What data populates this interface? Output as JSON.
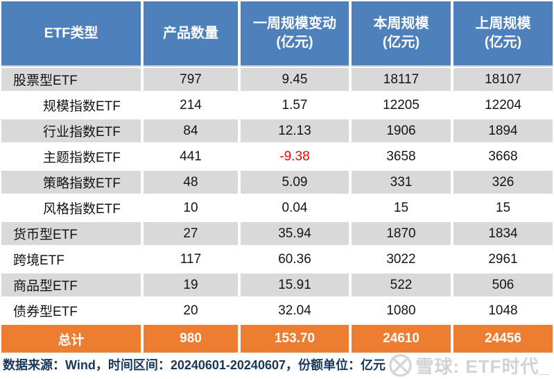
{
  "colors": {
    "header_bg": "#4E80BC",
    "row_alt_bg": "#D9D9D9",
    "total_bg": "#ED7D31",
    "negative": "#FF0000",
    "footer_text": "#17375E",
    "watermark": "#D2D2D2"
  },
  "table": {
    "header": {
      "col1": "ETF类型",
      "col2": "产品数量",
      "col3_line1": "一周规模变动",
      "col3_line2": "(亿元)",
      "col4_line1": "本周规模",
      "col4_line2": "(亿元)",
      "col5_line1": "上周规模",
      "col5_line2": "(亿元)"
    },
    "rows": [
      {
        "label": "股票型ETF",
        "indent": false,
        "count": "797",
        "change": "9.45",
        "this_week": "18117",
        "last_week": "18107",
        "negative": false
      },
      {
        "label": "规模指数ETF",
        "indent": true,
        "count": "214",
        "change": "1.57",
        "this_week": "12205",
        "last_week": "12204",
        "negative": false
      },
      {
        "label": "行业指数ETF",
        "indent": true,
        "count": "84",
        "change": "12.13",
        "this_week": "1906",
        "last_week": "1894",
        "negative": false
      },
      {
        "label": "主题指数ETF",
        "indent": true,
        "count": "441",
        "change": "-9.38",
        "this_week": "3658",
        "last_week": "3668",
        "negative": true
      },
      {
        "label": "策略指数ETF",
        "indent": true,
        "count": "48",
        "change": "5.09",
        "this_week": "331",
        "last_week": "326",
        "negative": false
      },
      {
        "label": "风格指数ETF",
        "indent": true,
        "count": "10",
        "change": "0.04",
        "this_week": "15",
        "last_week": "15",
        "negative": false
      },
      {
        "label": "货币型ETF",
        "indent": false,
        "count": "27",
        "change": "35.94",
        "this_week": "1870",
        "last_week": "1834",
        "negative": false
      },
      {
        "label": "跨境ETF",
        "indent": false,
        "count": "117",
        "change": "60.36",
        "this_week": "3022",
        "last_week": "2961",
        "negative": false
      },
      {
        "label": "商品型ETF",
        "indent": false,
        "count": "19",
        "change": "15.91",
        "this_week": "522",
        "last_week": "506",
        "negative": false
      },
      {
        "label": "债券型ETF",
        "indent": false,
        "count": "20",
        "change": "32.04",
        "this_week": "1080",
        "last_week": "1048",
        "negative": false
      }
    ],
    "total": {
      "label": "总计",
      "count": "980",
      "change": "153.70",
      "this_week": "24610",
      "last_week": "24456"
    }
  },
  "footer": {
    "text": "数据来源：Wind，时间区间：20240601-20240607，份额单位：亿元"
  },
  "watermark": {
    "text": "雪球: ETF时代_"
  },
  "chart_data": {
    "type": "table",
    "columns": [
      "ETF类型",
      "产品数量",
      "一周规模变动(亿元)",
      "本周规模(亿元)",
      "上周规模(亿元)"
    ],
    "rows": [
      [
        "股票型ETF",
        797,
        9.45,
        18117,
        18107
      ],
      [
        "规模指数ETF",
        214,
        1.57,
        12205,
        12204
      ],
      [
        "行业指数ETF",
        84,
        12.13,
        1906,
        1894
      ],
      [
        "主题指数ETF",
        441,
        -9.38,
        3658,
        3668
      ],
      [
        "策略指数ETF",
        48,
        5.09,
        331,
        326
      ],
      [
        "风格指数ETF",
        10,
        0.04,
        15,
        15
      ],
      [
        "货币型ETF",
        27,
        35.94,
        1870,
        1834
      ],
      [
        "跨境ETF",
        117,
        60.36,
        3022,
        2961
      ],
      [
        "商品型ETF",
        19,
        15.91,
        522,
        506
      ],
      [
        "债券型ETF",
        20,
        32.04,
        1080,
        1048
      ],
      [
        "总计",
        980,
        153.7,
        24610,
        24456
      ]
    ],
    "notes": "数据来源：Wind，时间区间：20240601-20240607，份额单位：亿元",
    "sub_rows_of_first_group": [
      "规模指数ETF",
      "行业指数ETF",
      "主题指数ETF",
      "策略指数ETF",
      "风格指数ETF"
    ]
  }
}
